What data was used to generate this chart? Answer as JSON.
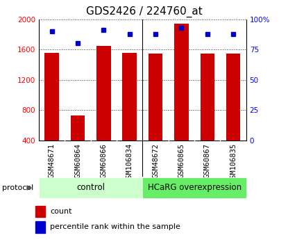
{
  "title": "GDS2426 / 224760_at",
  "samples": [
    "GSM48671",
    "GSM60864",
    "GSM60866",
    "GSM106834",
    "GSM48672",
    "GSM60865",
    "GSM60867",
    "GSM106835"
  ],
  "counts": [
    1560,
    730,
    1650,
    1555,
    1545,
    1940,
    1545,
    1545
  ],
  "percentile_ranks": [
    90,
    80,
    91,
    88,
    88,
    93,
    88,
    88
  ],
  "bar_color": "#cc0000",
  "dot_color": "#0000cc",
  "ylim_left": [
    400,
    2000
  ],
  "ylim_right": [
    0,
    100
  ],
  "yticks_left": [
    400,
    800,
    1200,
    1600,
    2000
  ],
  "yticks_right": [
    0,
    25,
    50,
    75,
    100
  ],
  "ylabel_right_labels": [
    "0",
    "25",
    "50",
    "75",
    "100%"
  ],
  "ctrl_color": "#ccffcc",
  "hcarg_color": "#66ee66",
  "title_fontsize": 11,
  "tick_fontsize": 7.5,
  "legend_fontsize": 8
}
